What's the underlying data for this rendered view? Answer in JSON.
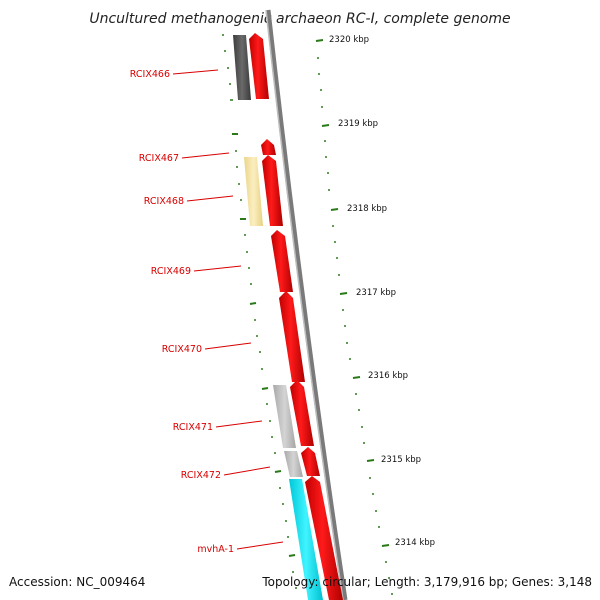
{
  "title": "Uncultured methanogenic archaeon RC-I, complete genome",
  "accession": "Accession: NC_009464",
  "summary": "Topology: circular; Length: 3,179,916 bp; Genes: 3,148",
  "scale_ticks": [
    {
      "label": "2320 kbp"
    },
    {
      "label": "2319 kbp"
    },
    {
      "label": "2318 kbp"
    },
    {
      "label": "2317 kbp"
    },
    {
      "label": "2316 kbp"
    },
    {
      "label": "2315 kbp"
    },
    {
      "label": "2314 kbp"
    }
  ],
  "genes": [
    {
      "label": "RCIX466"
    },
    {
      "label": "RCIX467"
    },
    {
      "label": "RCIX468"
    },
    {
      "label": "RCIX469"
    },
    {
      "label": "RCIX470"
    },
    {
      "label": "RCIX471"
    },
    {
      "label": "RCIX472"
    },
    {
      "label": "mvhA-1"
    }
  ],
  "colors": {
    "forward_gene": "#ff0000",
    "backbone": "#888888",
    "tick": "#2a7a1a",
    "label": "#d80000",
    "dark_gray_feature": "#555555",
    "yellow_feature": "#f3e3a0",
    "light_gray_feature": "#bdbdbd",
    "cyan_feature": "#00e5ee"
  }
}
